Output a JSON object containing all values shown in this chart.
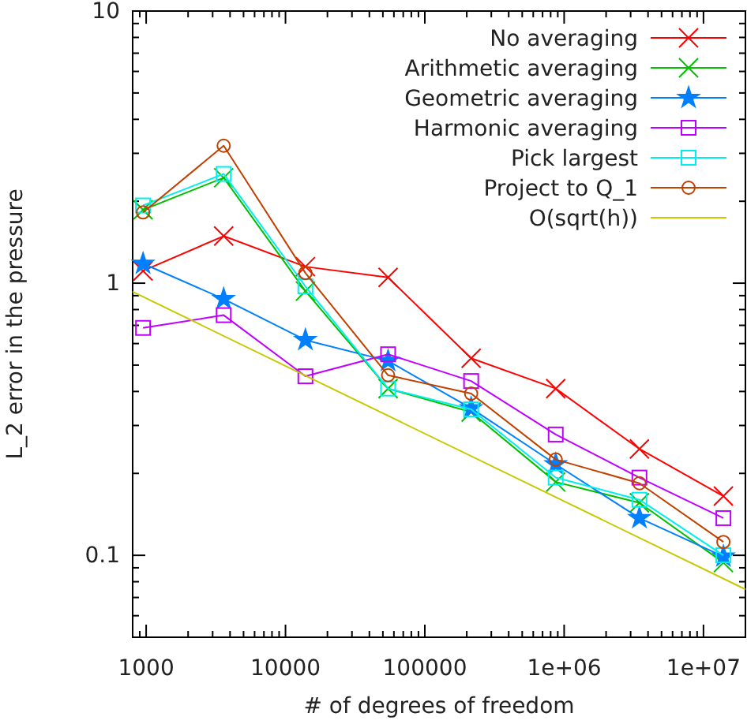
{
  "chart_data": {
    "type": "line",
    "xlabel": "# of degrees of freedom",
    "ylabel": "L_2 error in the pressure",
    "log": "xy",
    "grid": false,
    "legend": "top right",
    "xlim": [
      800,
      20000000
    ],
    "ylim": [
      0.05,
      10
    ],
    "xticks": [
      {
        "value": 900,
        "label": null
      },
      1000,
      {
        "value": 2000,
        "label": null
      },
      {
        "value": 3000,
        "label": null
      },
      {
        "value": 4000,
        "label": null
      },
      {
        "value": 5000,
        "label": null
      },
      {
        "value": 6000,
        "label": null
      },
      {
        "value": 7000,
        "label": null
      },
      {
        "value": 8000,
        "label": null
      },
      {
        "value": 9000,
        "label": null
      },
      10000,
      {
        "value": 20000,
        "label": null
      },
      {
        "value": 30000,
        "label": null
      },
      {
        "value": 40000,
        "label": null
      },
      {
        "value": 50000,
        "label": null
      },
      {
        "value": 60000,
        "label": null
      },
      {
        "value": 70000,
        "label": null
      },
      {
        "value": 80000,
        "label": null
      },
      {
        "value": 90000,
        "label": null
      },
      100000,
      {
        "value": 200000,
        "label": null
      },
      {
        "value": 300000,
        "label": null
      },
      {
        "value": 400000,
        "label": null
      },
      {
        "value": 500000,
        "label": null
      },
      {
        "value": 600000,
        "label": null
      },
      {
        "value": 700000,
        "label": null
      },
      {
        "value": 800000,
        "label": null
      },
      {
        "value": 900000,
        "label": null
      },
      {
        "value": 1000000,
        "label": "1e+06"
      },
      {
        "value": 2000000,
        "label": null
      },
      {
        "value": 3000000,
        "label": null
      },
      {
        "value": 4000000,
        "label": null
      },
      {
        "value": 5000000,
        "label": null
      },
      {
        "value": 6000000,
        "label": null
      },
      {
        "value": 7000000,
        "label": null
      },
      {
        "value": 8000000,
        "label": null
      },
      {
        "value": 9000000,
        "label": null
      },
      {
        "value": 10000000,
        "label": "1e+07"
      },
      {
        "value": 20000000,
        "label": null
      }
    ],
    "yticks": [
      {
        "value": 0.06,
        "label": null
      },
      {
        "value": 0.07,
        "label": null
      },
      {
        "value": 0.08,
        "label": null
      },
      {
        "value": 0.09,
        "label": null
      },
      0.1,
      {
        "value": 0.2,
        "label": null
      },
      {
        "value": 0.3,
        "label": null
      },
      {
        "value": 0.4,
        "label": null
      },
      {
        "value": 0.5,
        "label": null
      },
      {
        "value": 0.6,
        "label": null
      },
      {
        "value": 0.7,
        "label": null
      },
      {
        "value": 0.8,
        "label": null
      },
      {
        "value": 0.9,
        "label": null
      },
      1,
      {
        "value": 2,
        "label": null
      },
      {
        "value": 3,
        "label": null
      },
      {
        "value": 4,
        "label": null
      },
      {
        "value": 5,
        "label": null
      },
      {
        "value": 6,
        "label": null
      },
      {
        "value": 7,
        "label": null
      },
      {
        "value": 8,
        "label": null
      },
      {
        "value": 9,
        "label": null
      },
      10
    ],
    "x": [
      950,
      3600,
      13900,
      54500,
      215000,
      870000,
      3470000,
      13900000
    ],
    "series": [
      {
        "name": "No averaging",
        "color": "#ff0000",
        "marker": "cross",
        "values": [
          1.11,
          1.49,
          1.15,
          1.05,
          0.53,
          0.41,
          0.246,
          0.165
        ]
      },
      {
        "name": "Arithmetic averaging",
        "color": "#00c000",
        "marker": "cross",
        "values": [
          1.86,
          2.44,
          0.935,
          0.41,
          0.336,
          0.186,
          0.156,
          0.094
        ]
      },
      {
        "name": "Geometric averaging",
        "color": "#0080ff",
        "marker": "star",
        "values": [
          1.18,
          0.875,
          0.618,
          0.518,
          0.347,
          0.216,
          0.137,
          0.099
        ]
      },
      {
        "name": "Harmonic averaging",
        "color": "#c000ff",
        "marker": "square",
        "values": [
          0.685,
          0.763,
          0.455,
          0.548,
          0.437,
          0.278,
          0.193,
          0.137
        ]
      },
      {
        "name": "Pick largest",
        "color": "#00eeee",
        "marker": "square",
        "values": [
          1.93,
          2.52,
          0.974,
          0.41,
          0.344,
          0.193,
          0.16,
          0.1
        ]
      },
      {
        "name": "Project to Q_1",
        "color": "#c04000",
        "marker": "circle",
        "values": [
          1.82,
          3.2,
          1.09,
          0.459,
          0.393,
          0.225,
          0.184,
          0.112
        ]
      },
      {
        "name": "O(sqrt(h))",
        "color": "#c8c800",
        "marker": "none",
        "x": [
          800,
          20000000
        ],
        "values": [
          0.93,
          0.075
        ]
      }
    ]
  }
}
